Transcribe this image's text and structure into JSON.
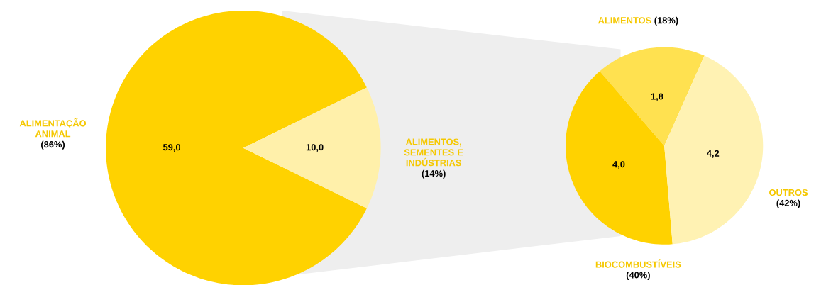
{
  "chart_data": [
    {
      "type": "pie",
      "categories": [
        "ALIMENTAÇÃO ANIMAL",
        "ALIMENTOS, SEMENTES E INDÚSTRIAS"
      ],
      "values": [
        59.0,
        10.0
      ],
      "value_labels": [
        "59,0",
        "10,0"
      ],
      "colors": [
        "#ffd200",
        "#fff0aa"
      ],
      "annotations": [
        "(86%)",
        "(14%)"
      ]
    },
    {
      "type": "pie",
      "categories": [
        "ALIMENTOS",
        "BIOCOMBUSTÍVEIS",
        "OUTROS"
      ],
      "values": [
        1.8,
        4.0,
        4.2
      ],
      "value_labels": [
        "1,8",
        "4,0",
        "4,2"
      ],
      "colors": [
        "#ffe150",
        "#ffd200",
        "#fff2b3"
      ],
      "annotations": [
        "(18%)",
        "(40%)",
        "(42%)"
      ]
    }
  ]
}
